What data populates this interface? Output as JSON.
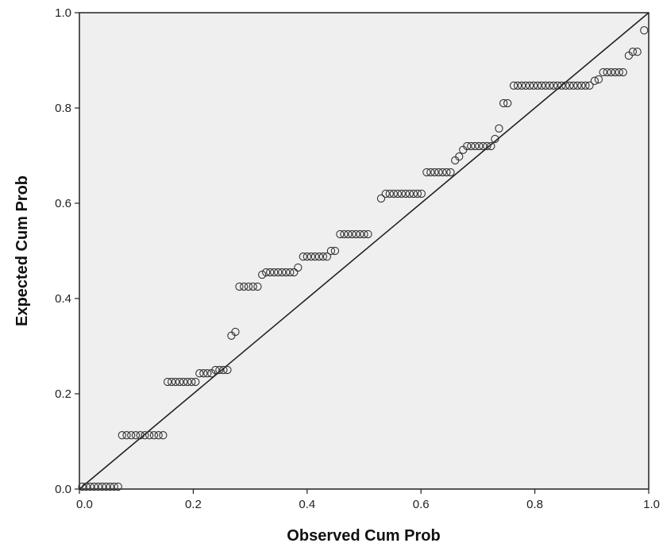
{
  "chart_data": {
    "type": "scatter",
    "title": "",
    "xlabel": "Observed Cum Prob",
    "ylabel": "Expected Cum Prob",
    "xlim": [
      0,
      1
    ],
    "ylim": [
      0,
      1
    ],
    "x_ticks": [
      "0.0",
      "0.2",
      "0.4",
      "0.6",
      "0.8",
      "1.0"
    ],
    "y_ticks": [
      "0.0",
      "0.2",
      "0.4",
      "0.6",
      "0.8",
      "1.0"
    ],
    "grid": false,
    "legend": "none",
    "reference_line": {
      "from": [
        0,
        0
      ],
      "to": [
        1,
        1
      ]
    },
    "colors": {
      "plot_background": "#efefef",
      "marker": "#333333",
      "line": "#222222"
    },
    "points": [
      [
        0.005,
        0.005
      ],
      [
        0.012,
        0.005
      ],
      [
        0.019,
        0.005
      ],
      [
        0.026,
        0.005
      ],
      [
        0.033,
        0.005
      ],
      [
        0.04,
        0.005
      ],
      [
        0.047,
        0.005
      ],
      [
        0.054,
        0.005
      ],
      [
        0.061,
        0.005
      ],
      [
        0.068,
        0.005
      ],
      [
        0.075,
        0.113
      ],
      [
        0.083,
        0.113
      ],
      [
        0.091,
        0.113
      ],
      [
        0.099,
        0.113
      ],
      [
        0.107,
        0.113
      ],
      [
        0.115,
        0.113
      ],
      [
        0.123,
        0.113
      ],
      [
        0.131,
        0.113
      ],
      [
        0.139,
        0.113
      ],
      [
        0.147,
        0.113
      ],
      [
        0.155,
        0.225
      ],
      [
        0.162,
        0.225
      ],
      [
        0.169,
        0.225
      ],
      [
        0.176,
        0.225
      ],
      [
        0.183,
        0.225
      ],
      [
        0.19,
        0.225
      ],
      [
        0.197,
        0.225
      ],
      [
        0.204,
        0.225
      ],
      [
        0.211,
        0.243
      ],
      [
        0.218,
        0.243
      ],
      [
        0.225,
        0.243
      ],
      [
        0.232,
        0.243
      ],
      [
        0.239,
        0.25
      ],
      [
        0.246,
        0.25
      ],
      [
        0.253,
        0.25
      ],
      [
        0.26,
        0.25
      ],
      [
        0.267,
        0.322
      ],
      [
        0.274,
        0.33
      ],
      [
        0.281,
        0.425
      ],
      [
        0.289,
        0.425
      ],
      [
        0.297,
        0.425
      ],
      [
        0.305,
        0.425
      ],
      [
        0.313,
        0.425
      ],
      [
        0.321,
        0.45
      ],
      [
        0.328,
        0.455
      ],
      [
        0.335,
        0.455
      ],
      [
        0.342,
        0.455
      ],
      [
        0.349,
        0.455
      ],
      [
        0.356,
        0.455
      ],
      [
        0.363,
        0.455
      ],
      [
        0.37,
        0.455
      ],
      [
        0.377,
        0.455
      ],
      [
        0.384,
        0.465
      ],
      [
        0.393,
        0.488
      ],
      [
        0.4,
        0.488
      ],
      [
        0.407,
        0.488
      ],
      [
        0.414,
        0.488
      ],
      [
        0.421,
        0.488
      ],
      [
        0.428,
        0.488
      ],
      [
        0.435,
        0.488
      ],
      [
        0.442,
        0.5
      ],
      [
        0.449,
        0.5
      ],
      [
        0.458,
        0.535
      ],
      [
        0.465,
        0.535
      ],
      [
        0.472,
        0.535
      ],
      [
        0.479,
        0.535
      ],
      [
        0.486,
        0.535
      ],
      [
        0.493,
        0.535
      ],
      [
        0.5,
        0.535
      ],
      [
        0.507,
        0.535
      ],
      [
        0.53,
        0.61
      ],
      [
        0.538,
        0.62
      ],
      [
        0.545,
        0.62
      ],
      [
        0.552,
        0.62
      ],
      [
        0.559,
        0.62
      ],
      [
        0.566,
        0.62
      ],
      [
        0.573,
        0.62
      ],
      [
        0.58,
        0.62
      ],
      [
        0.587,
        0.62
      ],
      [
        0.594,
        0.62
      ],
      [
        0.601,
        0.62
      ],
      [
        0.61,
        0.665
      ],
      [
        0.617,
        0.665
      ],
      [
        0.624,
        0.665
      ],
      [
        0.631,
        0.665
      ],
      [
        0.638,
        0.665
      ],
      [
        0.645,
        0.665
      ],
      [
        0.652,
        0.665
      ],
      [
        0.66,
        0.69
      ],
      [
        0.667,
        0.698
      ],
      [
        0.674,
        0.712
      ],
      [
        0.681,
        0.72
      ],
      [
        0.688,
        0.72
      ],
      [
        0.695,
        0.72
      ],
      [
        0.702,
        0.72
      ],
      [
        0.709,
        0.72
      ],
      [
        0.716,
        0.72
      ],
      [
        0.723,
        0.72
      ],
      [
        0.73,
        0.735
      ],
      [
        0.737,
        0.757
      ],
      [
        0.745,
        0.81
      ],
      [
        0.752,
        0.81
      ],
      [
        0.763,
        0.847
      ],
      [
        0.77,
        0.847
      ],
      [
        0.777,
        0.847
      ],
      [
        0.784,
        0.847
      ],
      [
        0.791,
        0.847
      ],
      [
        0.798,
        0.847
      ],
      [
        0.805,
        0.847
      ],
      [
        0.812,
        0.847
      ],
      [
        0.819,
        0.847
      ],
      [
        0.826,
        0.847
      ],
      [
        0.833,
        0.847
      ],
      [
        0.84,
        0.847
      ],
      [
        0.847,
        0.847
      ],
      [
        0.854,
        0.847
      ],
      [
        0.861,
        0.847
      ],
      [
        0.868,
        0.847
      ],
      [
        0.875,
        0.847
      ],
      [
        0.882,
        0.847
      ],
      [
        0.889,
        0.847
      ],
      [
        0.896,
        0.847
      ],
      [
        0.905,
        0.857
      ],
      [
        0.912,
        0.86
      ],
      [
        0.92,
        0.875
      ],
      [
        0.927,
        0.875
      ],
      [
        0.934,
        0.875
      ],
      [
        0.941,
        0.875
      ],
      [
        0.948,
        0.875
      ],
      [
        0.955,
        0.875
      ],
      [
        0.965,
        0.91
      ],
      [
        0.972,
        0.918
      ],
      [
        0.98,
        0.918
      ],
      [
        0.992,
        0.963
      ]
    ]
  }
}
